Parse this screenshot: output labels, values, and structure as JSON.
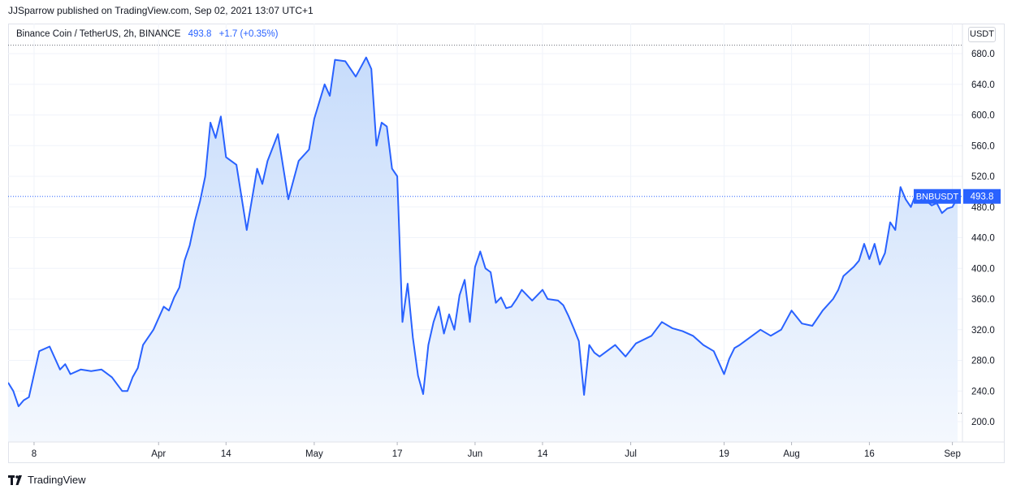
{
  "header": {
    "published_line": "JJSparrow published on TradingView.com, Sep 02, 2021 13:07 UTC+1"
  },
  "legend": {
    "symbol_line": "Binance Coin / TetherUS, 2h, BINANCE",
    "price": "493.8",
    "change": "+1.7 (+0.35%)"
  },
  "currency_button": "USDT",
  "footer": {
    "brand": "TradingView",
    "logo_icon": "tradingview-logo-icon"
  },
  "colors": {
    "line": "#2962ff",
    "fill_top": "#c7dcfb",
    "fill_bottom": "#f4f8fe",
    "grid": "#f0f3fa",
    "axis_text": "#131722",
    "badge_bg": "#2962ff",
    "badge_text": "#ffffff"
  },
  "chart_data": {
    "type": "area",
    "title": "Binance Coin / TetherUS, 2h, BINANCE",
    "ylabel": "USDT",
    "xlabel": "",
    "ylim": [
      180,
      700
    ],
    "y_ticks": [
      200,
      240,
      280,
      320,
      360,
      400,
      440,
      480,
      520,
      560,
      600,
      640,
      680
    ],
    "y_tick_labels": [
      "200.0",
      "240.0",
      "280.0",
      "320.0",
      "360.0",
      "400.0",
      "440.0",
      "480.0",
      "520.0",
      "560.0",
      "600.0",
      "640.0",
      "680.0"
    ],
    "x_ticks": [
      "2021-03-08",
      "2021-04-01",
      "2021-04-14",
      "2021-05-01",
      "2021-05-17",
      "2021-06-01",
      "2021-06-14",
      "2021-07-01",
      "2021-07-19",
      "2021-08-01",
      "2021-08-16",
      "2021-09-01"
    ],
    "x_tick_labels": [
      "8",
      "Apr",
      "14",
      "May",
      "17",
      "Jun",
      "14",
      "Jul",
      "19",
      "Aug",
      "16",
      "Sep"
    ],
    "grid": true,
    "range_lines": [
      691,
      211
    ],
    "last_label": {
      "name": "BNBUSDT",
      "value": "493.8",
      "y": 493.8
    },
    "series": [
      {
        "name": "BNBUSDT",
        "x": [
          "2021-03-03",
          "2021-03-04",
          "2021-03-05",
          "2021-03-06",
          "2021-03-07",
          "2021-03-09",
          "2021-03-11",
          "2021-03-13",
          "2021-03-14",
          "2021-03-15",
          "2021-03-17",
          "2021-03-19",
          "2021-03-21",
          "2021-03-23",
          "2021-03-25",
          "2021-03-26",
          "2021-03-27",
          "2021-03-28",
          "2021-03-29",
          "2021-03-31",
          "2021-04-02",
          "2021-04-03",
          "2021-04-04",
          "2021-04-05",
          "2021-04-06",
          "2021-04-07",
          "2021-04-08",
          "2021-04-09",
          "2021-04-10",
          "2021-04-11",
          "2021-04-12",
          "2021-04-13",
          "2021-04-14",
          "2021-04-16",
          "2021-04-18",
          "2021-04-20",
          "2021-04-21",
          "2021-04-22",
          "2021-04-24",
          "2021-04-26",
          "2021-04-28",
          "2021-04-30",
          "2021-05-01",
          "2021-05-03",
          "2021-05-04",
          "2021-05-05",
          "2021-05-07",
          "2021-05-09",
          "2021-05-11",
          "2021-05-12",
          "2021-05-13",
          "2021-05-14",
          "2021-05-15",
          "2021-05-16",
          "2021-05-17",
          "2021-05-18",
          "2021-05-19",
          "2021-05-20",
          "2021-05-21",
          "2021-05-22",
          "2021-05-23",
          "2021-05-24",
          "2021-05-25",
          "2021-05-26",
          "2021-05-27",
          "2021-05-28",
          "2021-05-29",
          "2021-05-30",
          "2021-05-31",
          "2021-06-01",
          "2021-06-02",
          "2021-06-03",
          "2021-06-04",
          "2021-06-05",
          "2021-06-06",
          "2021-06-07",
          "2021-06-08",
          "2021-06-09",
          "2021-06-10",
          "2021-06-12",
          "2021-06-14",
          "2021-06-15",
          "2021-06-17",
          "2021-06-18",
          "2021-06-19",
          "2021-06-20",
          "2021-06-21",
          "2021-06-22",
          "2021-06-23",
          "2021-06-24",
          "2021-06-25",
          "2021-06-26",
          "2021-06-28",
          "2021-06-30",
          "2021-07-02",
          "2021-07-05",
          "2021-07-07",
          "2021-07-09",
          "2021-07-11",
          "2021-07-13",
          "2021-07-15",
          "2021-07-17",
          "2021-07-19",
          "2021-07-20",
          "2021-07-21",
          "2021-07-22",
          "2021-07-24",
          "2021-07-26",
          "2021-07-28",
          "2021-07-30",
          "2021-08-01",
          "2021-08-03",
          "2021-08-05",
          "2021-08-07",
          "2021-08-09",
          "2021-08-10",
          "2021-08-11",
          "2021-08-13",
          "2021-08-14",
          "2021-08-15",
          "2021-08-16",
          "2021-08-17",
          "2021-08-18",
          "2021-08-19",
          "2021-08-20",
          "2021-08-21",
          "2021-08-22",
          "2021-08-23",
          "2021-08-24",
          "2021-08-25",
          "2021-08-26",
          "2021-08-27",
          "2021-08-28",
          "2021-08-29",
          "2021-08-30",
          "2021-08-31",
          "2021-09-01",
          "2021-09-02"
        ],
        "y": [
          251,
          240,
          220,
          228,
          232,
          292,
          298,
          268,
          275,
          262,
          268,
          266,
          268,
          258,
          240,
          240,
          258,
          270,
          300,
          320,
          350,
          345,
          362,
          375,
          410,
          430,
          462,
          488,
          520,
          590,
          570,
          598,
          545,
          535,
          450,
          530,
          510,
          540,
          575,
          490,
          540,
          555,
          595,
          640,
          625,
          672,
          670,
          650,
          675,
          660,
          560,
          590,
          585,
          530,
          520,
          330,
          380,
          310,
          260,
          236,
          300,
          330,
          350,
          315,
          340,
          320,
          365,
          385,
          330,
          402,
          422,
          400,
          395,
          355,
          362,
          348,
          350,
          360,
          372,
          358,
          372,
          360,
          358,
          352,
          338,
          322,
          305,
          235,
          300,
          290,
          285,
          290,
          300,
          285,
          302,
          312,
          330,
          322,
          318,
          312,
          300,
          292,
          262,
          282,
          296,
          300,
          310,
          320,
          312,
          320,
          345,
          328,
          325,
          345,
          360,
          372,
          390,
          402,
          410,
          432,
          412,
          432,
          405,
          420,
          460,
          450,
          506,
          490,
          480,
          498,
          500,
          488,
          482,
          485,
          472,
          478,
          480,
          492
        ]
      }
    ]
  }
}
